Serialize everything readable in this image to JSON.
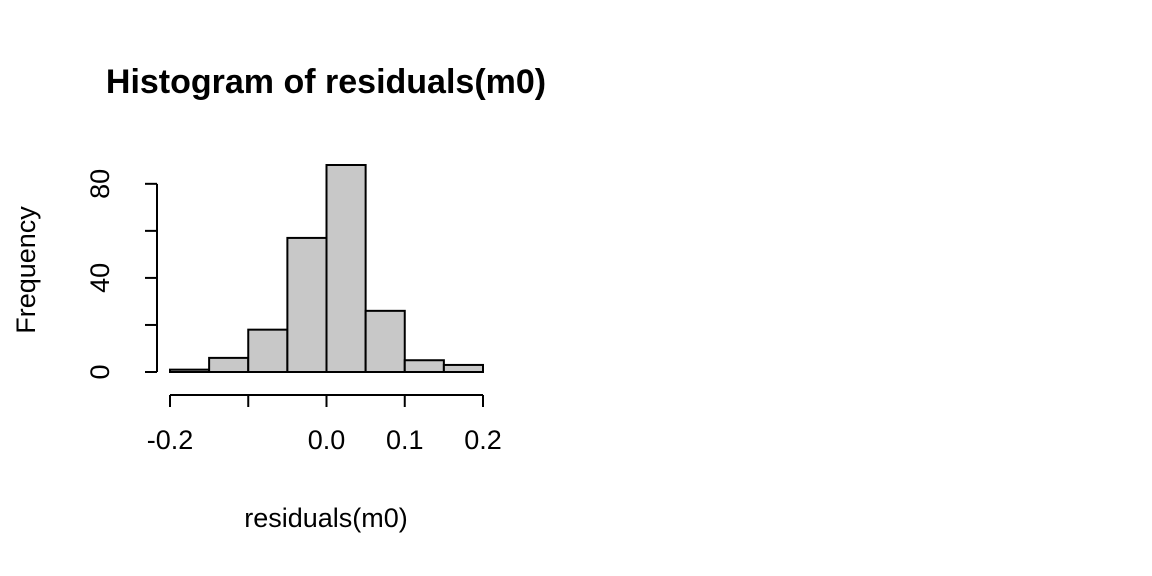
{
  "chart_data": {
    "type": "bar",
    "title": "Histogram of residuals(m0)",
    "xlabel": "residuals(m0)",
    "ylabel": "Frequency",
    "bins": [
      {
        "start": -0.2,
        "end": -0.15,
        "count": 1
      },
      {
        "start": -0.15,
        "end": -0.1,
        "count": 6
      },
      {
        "start": -0.1,
        "end": -0.05,
        "count": 18
      },
      {
        "start": -0.05,
        "end": 0.0,
        "count": 57
      },
      {
        "start": 0.0,
        "end": 0.05,
        "count": 88
      },
      {
        "start": 0.05,
        "end": 0.1,
        "count": 26
      },
      {
        "start": 0.1,
        "end": 0.15,
        "count": 5
      },
      {
        "start": 0.15,
        "end": 0.2,
        "count": 3
      }
    ],
    "xlim": [
      -0.2,
      0.2
    ],
    "ylim": [
      0,
      88
    ],
    "x_ticks": [
      -0.2,
      -0.1,
      0.0,
      0.1,
      0.2
    ],
    "x_tick_labels": [
      "-0.2",
      "",
      "0.0",
      "0.1",
      "0.2"
    ],
    "y_ticks": [
      0,
      20,
      40,
      60,
      80
    ],
    "y_tick_labels": [
      "0",
      "",
      "40",
      "",
      "80"
    ],
    "bar_color": "#c8c8c8"
  }
}
